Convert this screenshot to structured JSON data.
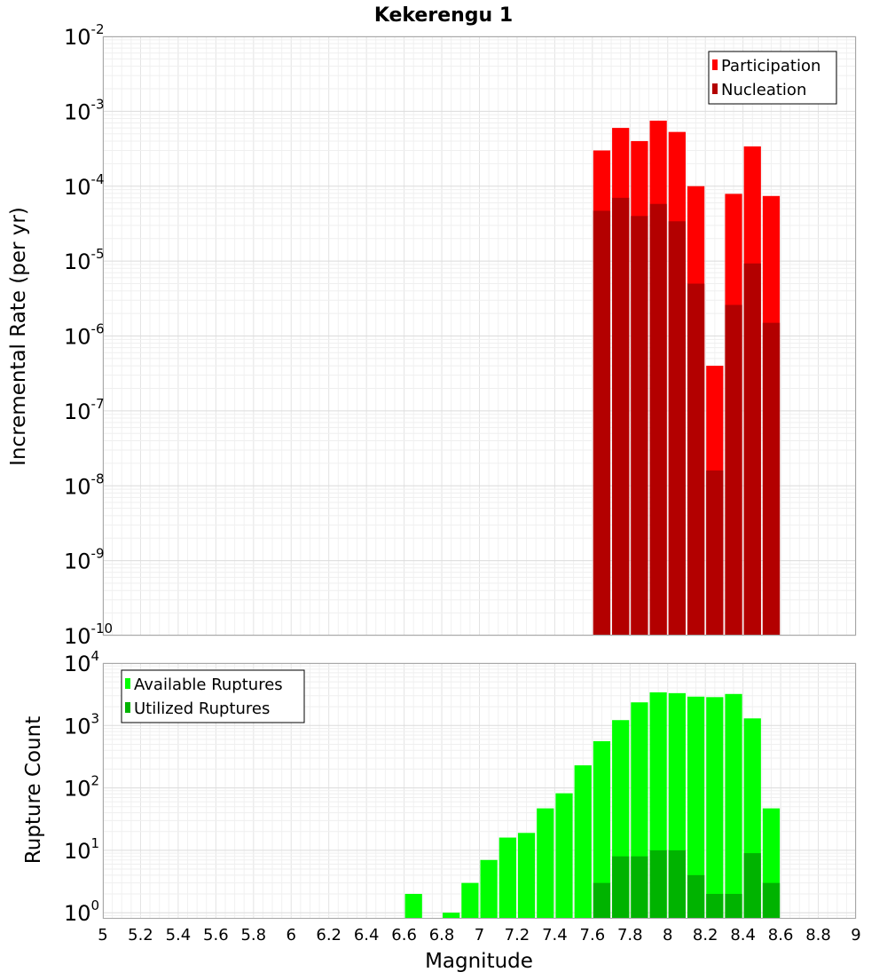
{
  "chart_data": {
    "title": "Kekerengu 1",
    "xlabel": "Magnitude",
    "xlim": [
      5,
      9
    ],
    "bin_width": 0.1,
    "x_ticks": [
      5,
      5.2,
      5.4,
      5.6,
      5.8,
      6,
      6.2,
      6.4,
      6.6,
      6.8,
      7,
      7.2,
      7.4,
      7.6,
      7.8,
      8,
      8.2,
      8.4,
      8.6,
      8.8,
      9
    ],
    "x_tick_labels": [
      "5",
      "5.2",
      "5.4",
      "5.6",
      "5.8",
      "6",
      "6.2",
      "6.4",
      "6.6",
      "6.8",
      "7",
      "7.2",
      "7.4",
      "7.6",
      "7.8",
      "8",
      "8.2",
      "8.4",
      "8.6",
      "8.8",
      "9"
    ],
    "panels": [
      {
        "type": "bar",
        "ylabel": "Incremental Rate (per yr)",
        "y_scale": "log",
        "ylim": [
          1e-10,
          0.01
        ],
        "y_tick_labels": [
          {
            "base": "10",
            "exp": "-2",
            "value": 0.01
          },
          {
            "base": "10",
            "exp": "-3",
            "value": 0.001
          },
          {
            "base": "10",
            "exp": "-4",
            "value": 0.0001
          },
          {
            "base": "10",
            "exp": "-5",
            "value": 1e-05
          },
          {
            "base": "10",
            "exp": "-6",
            "value": 1e-06
          },
          {
            "base": "10",
            "exp": "-7",
            "value": 1e-07
          },
          {
            "base": "10",
            "exp": "-8",
            "value": 1e-08
          },
          {
            "base": "10",
            "exp": "-9",
            "value": 1e-09
          },
          {
            "base": "10",
            "exp": "-10",
            "value": 1e-10
          }
        ],
        "grid": true,
        "legend_position": "top-right",
        "x": [
          7.65,
          7.75,
          7.85,
          7.95,
          8.05,
          8.15,
          8.25,
          8.35,
          8.45,
          8.55
        ],
        "series": [
          {
            "name": "Participation",
            "color": "#ff0000",
            "values": [
              0.0003,
              0.0006,
              0.0004,
              0.00075,
              0.00053,
              0.0001,
              4e-07,
              7.9e-05,
              0.00034,
              7.4e-05
            ]
          },
          {
            "name": "Nucleation",
            "color": "#b30000",
            "values": [
              4.7e-05,
              7e-05,
              4e-05,
              5.8e-05,
              3.4e-05,
              5e-06,
              1.6e-08,
              2.6e-06,
              9.3e-06,
              1.5e-06
            ]
          }
        ]
      },
      {
        "type": "bar",
        "ylabel": "Rupture Count",
        "y_scale": "log",
        "ylim": [
          0.8,
          10000
        ],
        "y_tick_labels": [
          {
            "base": "10",
            "exp": "4",
            "value": 10000
          },
          {
            "base": "10",
            "exp": "3",
            "value": 1000
          },
          {
            "base": "10",
            "exp": "2",
            "value": 100
          },
          {
            "base": "10",
            "exp": "1",
            "value": 10
          },
          {
            "base": "10",
            "exp": "0",
            "value": 1
          }
        ],
        "grid": true,
        "legend_position": "top-left",
        "x": [
          6.65,
          6.75,
          6.85,
          6.95,
          7.05,
          7.15,
          7.25,
          7.35,
          7.45,
          7.55,
          7.65,
          7.75,
          7.85,
          7.95,
          8.05,
          8.15,
          8.25,
          8.35,
          8.45,
          8.55
        ],
        "series": [
          {
            "name": "Available Ruptures",
            "color": "#00ff00",
            "values": [
              2,
              0,
              1,
              3,
              7,
              16,
              19,
              47,
              82,
              230,
              560,
              1220,
              2350,
              3400,
              3300,
              2900,
              2850,
              3200,
              1300,
              47
            ]
          },
          {
            "name": "Utilized Ruptures",
            "color": "#00b300",
            "values": [
              0,
              0,
              0,
              0,
              0,
              0,
              0,
              0,
              0,
              0,
              3,
              8,
              8,
              10,
              10,
              4,
              2,
              2,
              9,
              3
            ]
          }
        ]
      }
    ]
  }
}
